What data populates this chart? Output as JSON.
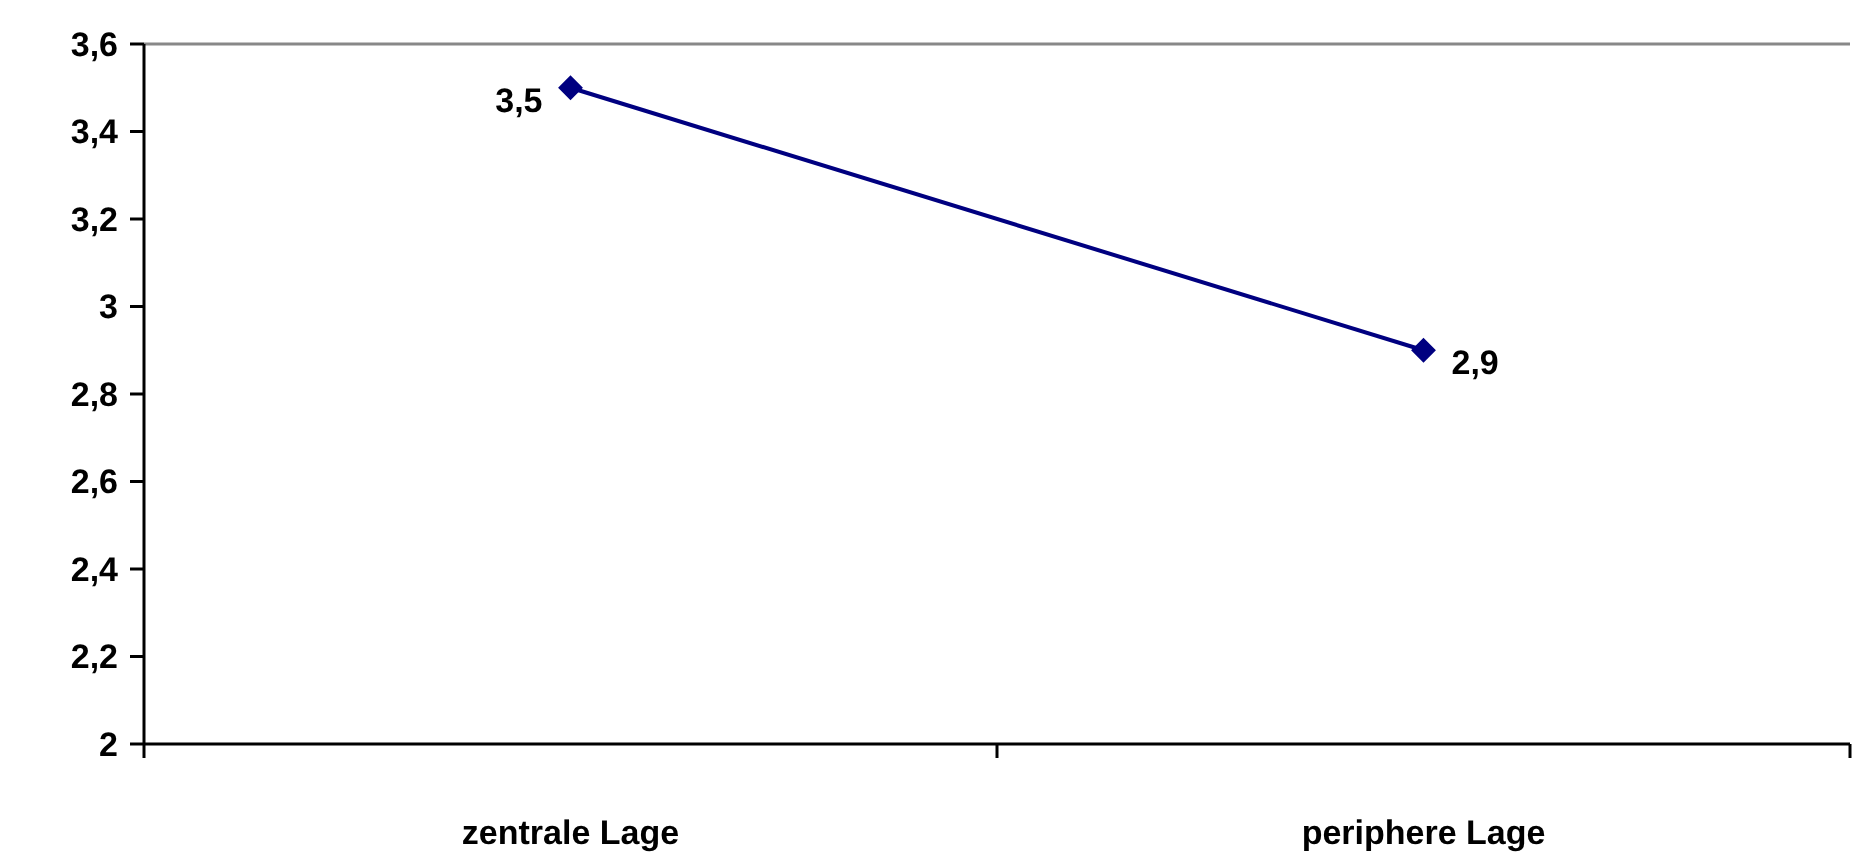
{
  "chart_data": {
    "type": "line",
    "categories": [
      "zentrale Lage",
      "periphere Lage"
    ],
    "series": [
      {
        "color": "#000080",
        "values": [
          3.5,
          2.9
        ]
      }
    ],
    "value_labels": [
      "3,5",
      "2,9"
    ],
    "ylim": [
      2,
      3.6
    ],
    "yticks": [
      2,
      {
        "value": 2.2,
        "label": "2,2"
      },
      {
        "value": 2.4,
        "label": "2,4"
      },
      {
        "value": 2.6,
        "label": "2,6"
      },
      {
        "value": 2.8,
        "label": "2,8"
      },
      3,
      {
        "value": 3.2,
        "label": "3,2"
      },
      {
        "value": 3.4,
        "label": "3,4"
      },
      {
        "value": 3.6,
        "label": "3,6"
      }
    ],
    "marker": "diamond",
    "line_style": "solid",
    "grid": false
  }
}
